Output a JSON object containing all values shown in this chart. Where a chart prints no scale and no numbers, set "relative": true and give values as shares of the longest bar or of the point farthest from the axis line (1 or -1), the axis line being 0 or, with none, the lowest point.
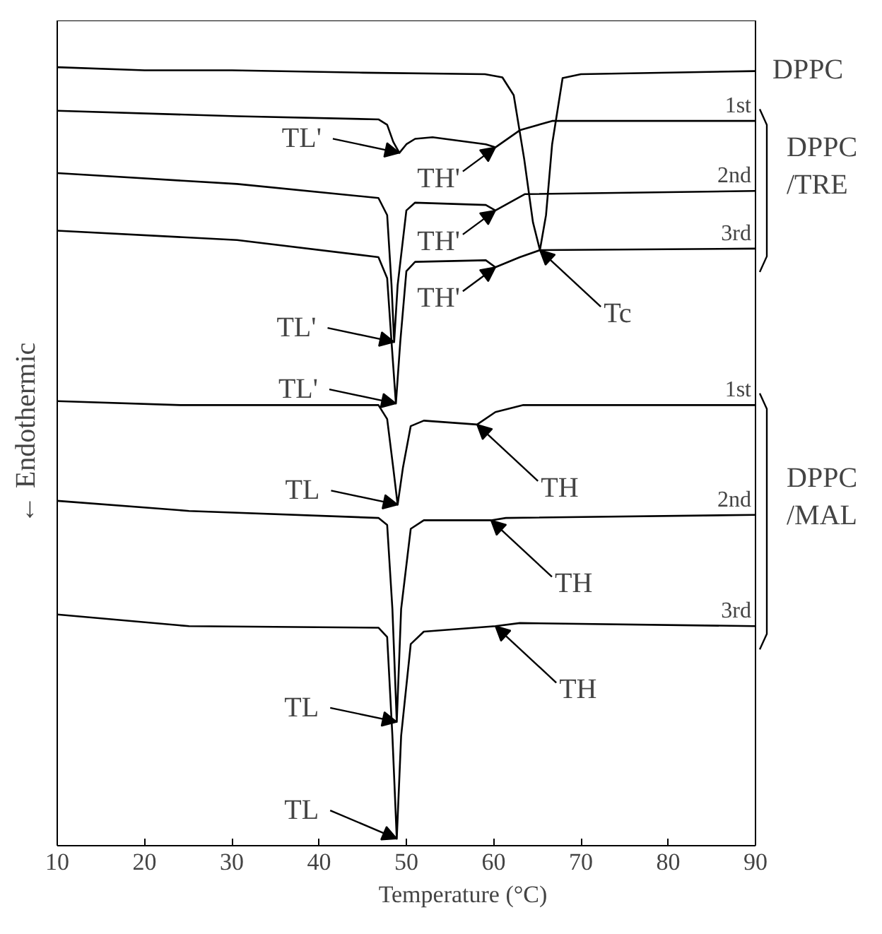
{
  "chart_data": {
    "type": "line",
    "xlabel": "Temperature (°C)",
    "ylabel": "← Endothermic",
    "relative": true,
    "xlim": [
      10,
      90
    ],
    "xticks": [
      10,
      20,
      30,
      40,
      50,
      60,
      70,
      80,
      90
    ],
    "grid": false,
    "legend": false,
    "marker": "none",
    "line_style": "solid",
    "series": [
      {
        "name": "DPPC",
        "color": "#000000",
        "x": [
          10,
          20,
          30,
          45,
          59,
          61,
          62.3,
          63.5,
          64.5,
          65.3,
          66,
          66.7,
          67.9,
          70,
          90
        ],
        "values": [
          1.0,
          0.996,
          0.996,
          0.993,
          0.991,
          0.987,
          0.964,
          0.882,
          0.801,
          0.765,
          0.81,
          0.901,
          0.986,
          0.991,
          0.995
        ]
      },
      {
        "name": "1st",
        "color": "#000000",
        "x": [
          10,
          30.6,
          46.8,
          47.8,
          48.5,
          49.2,
          50,
          51,
          53,
          59.1,
          60.2,
          63,
          66.7,
          90
        ],
        "values": [
          0.944,
          0.937,
          0.933,
          0.926,
          0.904,
          0.89,
          0.901,
          0.908,
          0.91,
          0.901,
          0.897,
          0.919,
          0.931,
          0.931
        ]
      },
      {
        "name": "2nd",
        "color": "#000000",
        "x": [
          10,
          30.6,
          46.8,
          47.8,
          48.3,
          48.6,
          49,
          50,
          51,
          59.1,
          60.2,
          63.6,
          90
        ],
        "values": [
          0.864,
          0.85,
          0.832,
          0.81,
          0.72,
          0.647,
          0.72,
          0.816,
          0.826,
          0.823,
          0.816,
          0.837,
          0.841
        ]
      },
      {
        "name": "3rd",
        "color": "#000000",
        "x": [
          10,
          30.6,
          46.8,
          47.8,
          48.3,
          48.8,
          49.3,
          50,
          51,
          59.1,
          60.2,
          63,
          65.3,
          90
        ],
        "values": [
          0.79,
          0.778,
          0.756,
          0.729,
          0.647,
          0.568,
          0.647,
          0.738,
          0.75,
          0.752,
          0.743,
          0.756,
          0.765,
          0.767
        ]
      },
      {
        "name": "1st",
        "color": "#000000",
        "x": [
          10,
          24.1,
          46.8,
          47.8,
          48.5,
          49,
          49.6,
          50.5,
          52,
          58.1,
          60.2,
          63.4,
          90
        ],
        "values": [
          0.571,
          0.566,
          0.566,
          0.548,
          0.485,
          0.438,
          0.485,
          0.539,
          0.546,
          0.541,
          0.557,
          0.566,
          0.566
        ]
      },
      {
        "name": "2nd",
        "color": "#000000",
        "x": [
          10,
          25.1,
          46.8,
          47.8,
          48.4,
          48.9,
          49.4,
          50.5,
          52,
          59.7,
          61.4,
          90
        ],
        "values": [
          0.443,
          0.43,
          0.421,
          0.412,
          0.304,
          0.159,
          0.304,
          0.407,
          0.418,
          0.418,
          0.421,
          0.425
        ]
      },
      {
        "name": "3rd",
        "color": "#000000",
        "x": [
          10,
          25.1,
          46.8,
          47.8,
          48.4,
          48.9,
          49.4,
          50.5,
          52,
          60.2,
          63,
          90
        ],
        "values": [
          0.297,
          0.282,
          0.28,
          0.268,
          0.141,
          0.009,
          0.141,
          0.259,
          0.275,
          0.282,
          0.286,
          0.282
        ]
      }
    ],
    "annotations": [
      {
        "text": "TL'",
        "x": 49.2,
        "y": 0.89
      },
      {
        "text": "TH'",
        "x": 60.2,
        "y": 0.897
      },
      {
        "text": "TH'",
        "x": 60.2,
        "y": 0.816
      },
      {
        "text": "TL'",
        "x": 48.6,
        "y": 0.647
      },
      {
        "text": "TH'",
        "x": 60.2,
        "y": 0.743
      },
      {
        "text": "Tc",
        "x": 65.3,
        "y": 0.765
      },
      {
        "text": "TL'",
        "x": 48.8,
        "y": 0.568
      },
      {
        "text": "TL",
        "x": 49,
        "y": 0.438
      },
      {
        "text": "TH",
        "x": 58.1,
        "y": 0.541
      },
      {
        "text": "TL",
        "x": 48.9,
        "y": 0.159
      },
      {
        "text": "TH",
        "x": 59.7,
        "y": 0.418
      },
      {
        "text": "TL",
        "x": 48.9,
        "y": 0.009
      },
      {
        "text": "TH",
        "x": 60.2,
        "y": 0.282
      },
      "DPPC\n/TRE",
      "DPPC\n/MAL"
    ]
  }
}
